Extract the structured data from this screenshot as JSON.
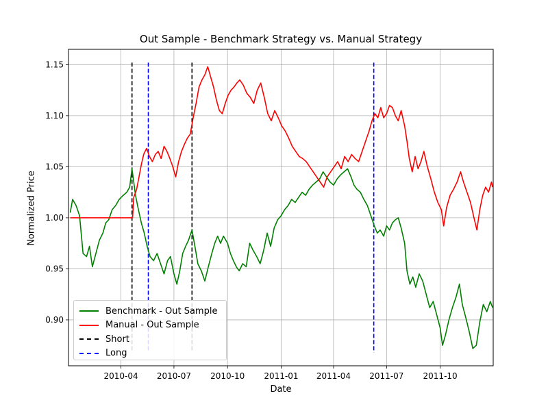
{
  "chart_data": {
    "type": "line",
    "title": "Out Sample - Benchmark Strategy vs. Manual Strategy",
    "xlabel": "Date",
    "ylabel": "Normalized Price",
    "x_range": [
      "2010-01-01",
      "2011-12-31"
    ],
    "ylim": [
      0.855,
      1.165
    ],
    "grid": true,
    "legend_position": "lower-left",
    "x_ticks": [
      "2010-04",
      "2010-07",
      "2010-10",
      "2011-01",
      "2011-04",
      "2011-07",
      "2011-10"
    ],
    "y_ticks": [
      0.9,
      0.95,
      1.0,
      1.05,
      1.1,
      1.15
    ],
    "series": [
      {
        "name": "Benchmark - Out Sample",
        "color": "#008000",
        "points": [
          [
            "2010-01-04",
            1.005
          ],
          [
            "2010-01-08",
            1.018
          ],
          [
            "2010-01-14",
            1.012
          ],
          [
            "2010-01-20",
            1.002
          ],
          [
            "2010-01-26",
            0.965
          ],
          [
            "2010-02-01",
            0.962
          ],
          [
            "2010-02-06",
            0.972
          ],
          [
            "2010-02-11",
            0.952
          ],
          [
            "2010-02-17",
            0.965
          ],
          [
            "2010-02-23",
            0.978
          ],
          [
            "2010-03-01",
            0.985
          ],
          [
            "2010-03-06",
            0.995
          ],
          [
            "2010-03-11",
            0.998
          ],
          [
            "2010-03-17",
            1.008
          ],
          [
            "2010-03-23",
            1.012
          ],
          [
            "2010-03-29",
            1.018
          ],
          [
            "2010-04-05",
            1.022
          ],
          [
            "2010-04-11",
            1.025
          ],
          [
            "2010-04-16",
            1.03
          ],
          [
            "2010-04-20",
            1.048
          ],
          [
            "2010-04-26",
            1.022
          ],
          [
            "2010-05-01",
            1.008
          ],
          [
            "2010-05-06",
            0.995
          ],
          [
            "2010-05-11",
            0.985
          ],
          [
            "2010-05-16",
            0.972
          ],
          [
            "2010-05-21",
            0.962
          ],
          [
            "2010-05-27",
            0.958
          ],
          [
            "2010-06-02",
            0.965
          ],
          [
            "2010-06-08",
            0.955
          ],
          [
            "2010-06-14",
            0.945
          ],
          [
            "2010-06-20",
            0.958
          ],
          [
            "2010-06-25",
            0.962
          ],
          [
            "2010-07-01",
            0.945
          ],
          [
            "2010-07-06",
            0.935
          ],
          [
            "2010-07-11",
            0.948
          ],
          [
            "2010-07-16",
            0.965
          ],
          [
            "2010-07-21",
            0.972
          ],
          [
            "2010-07-26",
            0.978
          ],
          [
            "2010-08-01",
            0.988
          ],
          [
            "2010-08-06",
            0.972
          ],
          [
            "2010-08-11",
            0.955
          ],
          [
            "2010-08-17",
            0.948
          ],
          [
            "2010-08-23",
            0.938
          ],
          [
            "2010-08-29",
            0.952
          ],
          [
            "2010-09-04",
            0.965
          ],
          [
            "2010-09-09",
            0.975
          ],
          [
            "2010-09-14",
            0.982
          ],
          [
            "2010-09-19",
            0.975
          ],
          [
            "2010-09-24",
            0.982
          ],
          [
            "2010-10-01",
            0.975
          ],
          [
            "2010-10-06",
            0.965
          ],
          [
            "2010-10-11",
            0.958
          ],
          [
            "2010-10-16",
            0.952
          ],
          [
            "2010-10-21",
            0.948
          ],
          [
            "2010-10-27",
            0.955
          ],
          [
            "2010-11-02",
            0.952
          ],
          [
            "2010-11-08",
            0.975
          ],
          [
            "2010-11-14",
            0.968
          ],
          [
            "2010-11-20",
            0.962
          ],
          [
            "2010-11-26",
            0.955
          ],
          [
            "2010-12-02",
            0.968
          ],
          [
            "2010-12-08",
            0.985
          ],
          [
            "2010-12-14",
            0.972
          ],
          [
            "2010-12-20",
            0.99
          ],
          [
            "2010-12-26",
            0.998
          ],
          [
            "2011-01-01",
            1.002
          ],
          [
            "2011-01-07",
            1.008
          ],
          [
            "2011-01-13",
            1.012
          ],
          [
            "2011-01-19",
            1.018
          ],
          [
            "2011-01-25",
            1.015
          ],
          [
            "2011-01-31",
            1.02
          ],
          [
            "2011-02-06",
            1.025
          ],
          [
            "2011-02-12",
            1.022
          ],
          [
            "2011-02-18",
            1.028
          ],
          [
            "2011-02-24",
            1.032
          ],
          [
            "2011-03-02",
            1.035
          ],
          [
            "2011-03-08",
            1.038
          ],
          [
            "2011-03-14",
            1.045
          ],
          [
            "2011-03-20",
            1.04
          ],
          [
            "2011-03-26",
            1.035
          ],
          [
            "2011-04-01",
            1.032
          ],
          [
            "2011-04-07",
            1.038
          ],
          [
            "2011-04-13",
            1.042
          ],
          [
            "2011-04-19",
            1.045
          ],
          [
            "2011-04-25",
            1.048
          ],
          [
            "2011-05-01",
            1.04
          ],
          [
            "2011-05-06",
            1.032
          ],
          [
            "2011-05-11",
            1.028
          ],
          [
            "2011-05-17",
            1.025
          ],
          [
            "2011-05-23",
            1.018
          ],
          [
            "2011-05-29",
            1.012
          ],
          [
            "2011-06-04",
            1.002
          ],
          [
            "2011-06-10",
            0.992
          ],
          [
            "2011-06-15",
            0.985
          ],
          [
            "2011-06-20",
            0.988
          ],
          [
            "2011-06-26",
            0.982
          ],
          [
            "2011-07-01",
            0.992
          ],
          [
            "2011-07-06",
            0.988
          ],
          [
            "2011-07-11",
            0.995
          ],
          [
            "2011-07-16",
            0.998
          ],
          [
            "2011-07-21",
            1.0
          ],
          [
            "2011-07-26",
            0.99
          ],
          [
            "2011-08-01",
            0.975
          ],
          [
            "2011-08-05",
            0.948
          ],
          [
            "2011-08-10",
            0.935
          ],
          [
            "2011-08-15",
            0.942
          ],
          [
            "2011-08-20",
            0.932
          ],
          [
            "2011-08-26",
            0.945
          ],
          [
            "2011-09-01",
            0.938
          ],
          [
            "2011-09-07",
            0.925
          ],
          [
            "2011-09-13",
            0.912
          ],
          [
            "2011-09-19",
            0.918
          ],
          [
            "2011-09-25",
            0.905
          ],
          [
            "2011-10-01",
            0.892
          ],
          [
            "2011-10-05",
            0.875
          ],
          [
            "2011-10-10",
            0.885
          ],
          [
            "2011-10-16",
            0.9
          ],
          [
            "2011-10-22",
            0.912
          ],
          [
            "2011-10-28",
            0.922
          ],
          [
            "2011-11-03",
            0.935
          ],
          [
            "2011-11-08",
            0.915
          ],
          [
            "2011-11-14",
            0.902
          ],
          [
            "2011-11-20",
            0.888
          ],
          [
            "2011-11-26",
            0.872
          ],
          [
            "2011-12-02",
            0.875
          ],
          [
            "2011-12-08",
            0.898
          ],
          [
            "2011-12-14",
            0.915
          ],
          [
            "2011-12-20",
            0.908
          ],
          [
            "2011-12-26",
            0.918
          ],
          [
            "2011-12-30",
            0.912
          ]
        ]
      },
      {
        "name": "Manual - Out Sample",
        "color": "#ff0000",
        "points": [
          [
            "2010-01-04",
            1.0
          ],
          [
            "2010-04-21",
            1.0
          ],
          [
            "2010-04-23",
            1.02
          ],
          [
            "2010-04-28",
            1.028
          ],
          [
            "2010-05-02",
            1.04
          ],
          [
            "2010-05-06",
            1.052
          ],
          [
            "2010-05-10",
            1.062
          ],
          [
            "2010-05-15",
            1.068
          ],
          [
            "2010-05-20",
            1.06
          ],
          [
            "2010-05-25",
            1.055
          ],
          [
            "2010-05-30",
            1.062
          ],
          [
            "2010-06-04",
            1.065
          ],
          [
            "2010-06-09",
            1.058
          ],
          [
            "2010-06-14",
            1.07
          ],
          [
            "2010-06-19",
            1.065
          ],
          [
            "2010-06-24",
            1.058
          ],
          [
            "2010-06-29",
            1.05
          ],
          [
            "2010-07-04",
            1.04
          ],
          [
            "2010-07-09",
            1.055
          ],
          [
            "2010-07-14",
            1.065
          ],
          [
            "2010-07-19",
            1.072
          ],
          [
            "2010-07-24",
            1.078
          ],
          [
            "2010-07-29",
            1.082
          ],
          [
            "2010-08-03",
            1.098
          ],
          [
            "2010-08-08",
            1.112
          ],
          [
            "2010-08-13",
            1.128
          ],
          [
            "2010-08-18",
            1.135
          ],
          [
            "2010-08-23",
            1.14
          ],
          [
            "2010-08-28",
            1.148
          ],
          [
            "2010-09-02",
            1.138
          ],
          [
            "2010-09-07",
            1.128
          ],
          [
            "2010-09-12",
            1.115
          ],
          [
            "2010-09-17",
            1.105
          ],
          [
            "2010-09-22",
            1.102
          ],
          [
            "2010-09-27",
            1.112
          ],
          [
            "2010-10-02",
            1.12
          ],
          [
            "2010-10-07",
            1.125
          ],
          [
            "2010-10-12",
            1.128
          ],
          [
            "2010-10-17",
            1.132
          ],
          [
            "2010-10-22",
            1.135
          ],
          [
            "2010-10-28",
            1.13
          ],
          [
            "2010-11-03",
            1.122
          ],
          [
            "2010-11-09",
            1.118
          ],
          [
            "2010-11-15",
            1.112
          ],
          [
            "2010-11-21",
            1.125
          ],
          [
            "2010-11-27",
            1.132
          ],
          [
            "2010-12-03",
            1.118
          ],
          [
            "2010-12-09",
            1.102
          ],
          [
            "2010-12-15",
            1.095
          ],
          [
            "2010-12-21",
            1.105
          ],
          [
            "2010-12-27",
            1.098
          ],
          [
            "2011-01-02",
            1.09
          ],
          [
            "2011-01-08",
            1.085
          ],
          [
            "2011-01-14",
            1.078
          ],
          [
            "2011-01-20",
            1.07
          ],
          [
            "2011-01-26",
            1.065
          ],
          [
            "2011-02-01",
            1.06
          ],
          [
            "2011-02-07",
            1.058
          ],
          [
            "2011-02-13",
            1.055
          ],
          [
            "2011-02-19",
            1.05
          ],
          [
            "2011-02-25",
            1.045
          ],
          [
            "2011-03-03",
            1.04
          ],
          [
            "2011-03-09",
            1.035
          ],
          [
            "2011-03-15",
            1.03
          ],
          [
            "2011-03-21",
            1.04
          ],
          [
            "2011-03-27",
            1.045
          ],
          [
            "2011-04-02",
            1.05
          ],
          [
            "2011-04-08",
            1.055
          ],
          [
            "2011-04-14",
            1.048
          ],
          [
            "2011-04-20",
            1.06
          ],
          [
            "2011-04-26",
            1.055
          ],
          [
            "2011-05-02",
            1.062
          ],
          [
            "2011-05-08",
            1.058
          ],
          [
            "2011-05-14",
            1.055
          ],
          [
            "2011-05-20",
            1.065
          ],
          [
            "2011-05-26",
            1.075
          ],
          [
            "2011-06-01",
            1.085
          ],
          [
            "2011-06-06",
            1.095
          ],
          [
            "2011-06-11",
            1.102
          ],
          [
            "2011-06-16",
            1.098
          ],
          [
            "2011-06-21",
            1.108
          ],
          [
            "2011-06-26",
            1.098
          ],
          [
            "2011-07-01",
            1.102
          ],
          [
            "2011-07-06",
            1.11
          ],
          [
            "2011-07-11",
            1.108
          ],
          [
            "2011-07-16",
            1.1
          ],
          [
            "2011-07-21",
            1.095
          ],
          [
            "2011-07-26",
            1.105
          ],
          [
            "2011-08-01",
            1.09
          ],
          [
            "2011-08-05",
            1.075
          ],
          [
            "2011-08-09",
            1.058
          ],
          [
            "2011-08-14",
            1.045
          ],
          [
            "2011-08-19",
            1.06
          ],
          [
            "2011-08-24",
            1.048
          ],
          [
            "2011-08-29",
            1.055
          ],
          [
            "2011-09-03",
            1.065
          ],
          [
            "2011-09-09",
            1.05
          ],
          [
            "2011-09-15",
            1.038
          ],
          [
            "2011-09-21",
            1.025
          ],
          [
            "2011-09-27",
            1.015
          ],
          [
            "2011-10-03",
            1.008
          ],
          [
            "2011-10-07",
            0.992
          ],
          [
            "2011-10-12",
            1.01
          ],
          [
            "2011-10-18",
            1.022
          ],
          [
            "2011-10-24",
            1.028
          ],
          [
            "2011-10-30",
            1.035
          ],
          [
            "2011-11-05",
            1.045
          ],
          [
            "2011-11-10",
            1.035
          ],
          [
            "2011-11-16",
            1.025
          ],
          [
            "2011-11-22",
            1.015
          ],
          [
            "2011-11-28",
            1.0
          ],
          [
            "2011-12-03",
            0.988
          ],
          [
            "2011-12-08",
            1.008
          ],
          [
            "2011-12-13",
            1.022
          ],
          [
            "2011-12-18",
            1.03
          ],
          [
            "2011-12-23",
            1.025
          ],
          [
            "2011-12-28",
            1.035
          ],
          [
            "2011-12-30",
            1.03
          ]
        ]
      }
    ],
    "vlines": [
      {
        "name": "Short",
        "color": "#000000",
        "dates": [
          "2010-04-20",
          "2010-08-01"
        ]
      },
      {
        "name": "Long",
        "color": "#0000ff",
        "dates": [
          "2010-05-18",
          "2011-06-09"
        ]
      }
    ],
    "vline_range": [
      0.868,
      1.152
    ],
    "legend": [
      {
        "label": "Benchmark - Out Sample",
        "color": "#008000",
        "style": "solid"
      },
      {
        "label": "Manual - Out Sample",
        "color": "#ff0000",
        "style": "solid"
      },
      {
        "label": "Short",
        "color": "#000000",
        "style": "dashed"
      },
      {
        "label": "Long",
        "color": "#0000ff",
        "style": "dashed"
      }
    ]
  }
}
